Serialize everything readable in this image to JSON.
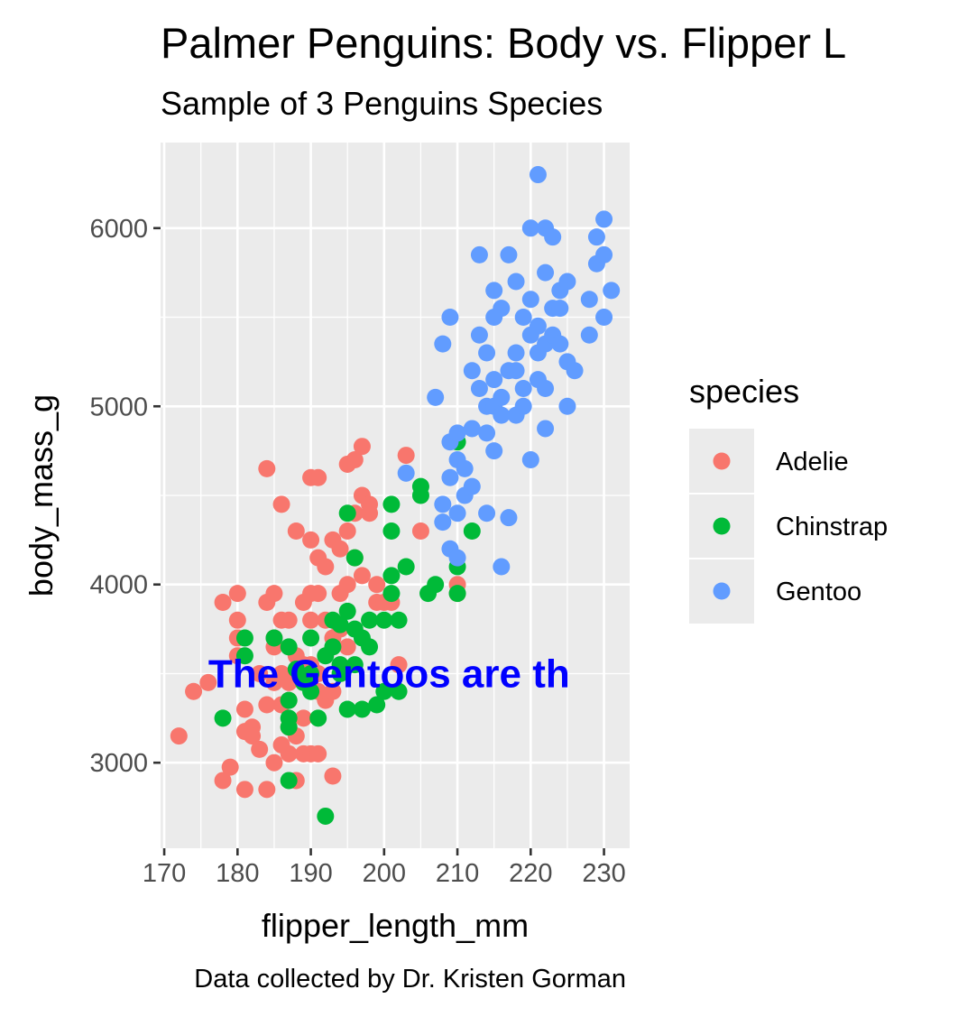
{
  "chart_data": {
    "type": "scatter",
    "title": "Palmer Penguins: Body vs. Flipper L",
    "subtitle": "Sample of 3 Penguins Species",
    "xlabel": "flipper_length_mm",
    "ylabel": "body_mass_g",
    "caption": "Data collected by Dr. Kristen Gorman",
    "xlim": [
      169.5,
      233.5
    ],
    "ylim": [
      2520,
      6480
    ],
    "x_ticks": [
      170,
      180,
      190,
      200,
      210,
      220,
      230
    ],
    "y_ticks": [
      3000,
      4000,
      5000,
      6000
    ],
    "grid": true,
    "legend_title": "species",
    "legend_position": "right",
    "annotation": {
      "text": "The Gentoos are th",
      "x": 176,
      "y": 3500,
      "color": "#0000ff"
    },
    "series": [
      {
        "name": "Adelie",
        "color": "#F8766D",
        "points": [
          [
            172,
            3150
          ],
          [
            174,
            3400
          ],
          [
            176,
            3450
          ],
          [
            178,
            3900
          ],
          [
            178,
            2900
          ],
          [
            179,
            2975
          ],
          [
            180,
            3950
          ],
          [
            180,
            3800
          ],
          [
            180,
            3700
          ],
          [
            180,
            3600
          ],
          [
            181,
            3300
          ],
          [
            181,
            3175
          ],
          [
            181,
            2850
          ],
          [
            182,
            3200
          ],
          [
            182,
            3150
          ],
          [
            183,
            3075
          ],
          [
            184,
            3900
          ],
          [
            184,
            4650
          ],
          [
            184,
            3325
          ],
          [
            184,
            2850
          ],
          [
            185,
            3950
          ],
          [
            185,
            3650
          ],
          [
            185,
            3450
          ],
          [
            185,
            3000
          ],
          [
            186,
            4450
          ],
          [
            186,
            3800
          ],
          [
            186,
            3500
          ],
          [
            186,
            3100
          ],
          [
            187,
            3800
          ],
          [
            187,
            3450
          ],
          [
            187,
            3350
          ],
          [
            187,
            3200
          ],
          [
            187,
            3050
          ],
          [
            188,
            4300
          ],
          [
            188,
            3600
          ],
          [
            188,
            2900
          ],
          [
            189,
            3900
          ],
          [
            189,
            3500
          ],
          [
            189,
            3250
          ],
          [
            189,
            3050
          ],
          [
            190,
            4600
          ],
          [
            190,
            4250
          ],
          [
            190,
            3950
          ],
          [
            190,
            3800
          ],
          [
            190,
            3550
          ],
          [
            190,
            3050
          ],
          [
            191,
            4600
          ],
          [
            191,
            4150
          ],
          [
            191,
            3950
          ],
          [
            191,
            3500
          ],
          [
            191,
            3050
          ],
          [
            192,
            4100
          ],
          [
            192,
            3800
          ],
          [
            192,
            3350
          ],
          [
            193,
            4250
          ],
          [
            193,
            3700
          ],
          [
            193,
            3400
          ],
          [
            193,
            2925
          ],
          [
            194,
            4200
          ],
          [
            194,
            3950
          ],
          [
            194,
            3750
          ],
          [
            195,
            4300
          ],
          [
            195,
            4000
          ],
          [
            195,
            3650
          ],
          [
            195,
            4675
          ],
          [
            196,
            4700
          ],
          [
            196,
            4400
          ],
          [
            196,
            4150
          ],
          [
            197,
            4500
          ],
          [
            197,
            4050
          ],
          [
            197,
            4775
          ],
          [
            198,
            4400
          ],
          [
            198,
            4450
          ],
          [
            199,
            4000
          ],
          [
            199,
            3900
          ],
          [
            200,
            3900
          ],
          [
            201,
            3900
          ],
          [
            202,
            3550
          ],
          [
            203,
            4725
          ],
          [
            205,
            4300
          ],
          [
            210,
            4000
          ],
          [
            210,
            3950
          ],
          [
            185,
            3700
          ],
          [
            183,
            3500
          ],
          [
            189,
            3550
          ],
          [
            186,
            3325
          ],
          [
            188,
            3150
          ],
          [
            191,
            3400
          ]
        ]
      },
      {
        "name": "Chinstrap",
        "color": "#00BA38",
        "points": [
          [
            178,
            3250
          ],
          [
            181,
            3700
          ],
          [
            181,
            3600
          ],
          [
            185,
            3700
          ],
          [
            187,
            3650
          ],
          [
            187,
            3350
          ],
          [
            187,
            3250
          ],
          [
            187,
            3200
          ],
          [
            187,
            2900
          ],
          [
            188,
            3525
          ],
          [
            189,
            3450
          ],
          [
            190,
            3700
          ],
          [
            190,
            3400
          ],
          [
            191,
            3250
          ],
          [
            192,
            2700
          ],
          [
            193,
            3800
          ],
          [
            193,
            3650
          ],
          [
            194,
            3775
          ],
          [
            195,
            4400
          ],
          [
            195,
            3850
          ],
          [
            195,
            3300
          ],
          [
            196,
            4150
          ],
          [
            196,
            3550
          ],
          [
            197,
            3700
          ],
          [
            197,
            3300
          ],
          [
            198,
            3800
          ],
          [
            199,
            3325
          ],
          [
            200,
            3400
          ],
          [
            201,
            4300
          ],
          [
            201,
            4450
          ],
          [
            201,
            4050
          ],
          [
            201,
            3950
          ],
          [
            202,
            3400
          ],
          [
            203,
            4100
          ],
          [
            205,
            4550
          ],
          [
            205,
            4500
          ],
          [
            206,
            3950
          ],
          [
            207,
            4000
          ],
          [
            210,
            4800
          ],
          [
            210,
            4100
          ],
          [
            210,
            3950
          ],
          [
            212,
            4300
          ],
          [
            192,
            3600
          ],
          [
            194,
            3550
          ],
          [
            196,
            3750
          ],
          [
            198,
            3650
          ],
          [
            200,
            3800
          ],
          [
            202,
            3800
          ],
          [
            194,
            3500
          ],
          [
            190,
            3500
          ]
        ]
      },
      {
        "name": "Gentoo",
        "color": "#619CFF",
        "points": [
          [
            203,
            4625
          ],
          [
            207,
            5050
          ],
          [
            208,
            5350
          ],
          [
            208,
            4450
          ],
          [
            208,
            4350
          ],
          [
            209,
            4800
          ],
          [
            209,
            5500
          ],
          [
            209,
            4200
          ],
          [
            209,
            4600
          ],
          [
            210,
            4850
          ],
          [
            210,
            4700
          ],
          [
            210,
            4400
          ],
          [
            210,
            4150
          ],
          [
            211,
            4500
          ],
          [
            211,
            4650
          ],
          [
            212,
            4550
          ],
          [
            212,
            4875
          ],
          [
            213,
            5850
          ],
          [
            213,
            5400
          ],
          [
            213,
            5100
          ],
          [
            214,
            5000
          ],
          [
            214,
            4400
          ],
          [
            214,
            4850
          ],
          [
            215,
            5650
          ],
          [
            215,
            5500
          ],
          [
            215,
            5000
          ],
          [
            215,
            4750
          ],
          [
            215,
            5150
          ],
          [
            216,
            5550
          ],
          [
            216,
            4100
          ],
          [
            216,
            4950
          ],
          [
            217,
            5850
          ],
          [
            217,
            5200
          ],
          [
            217,
            4375
          ],
          [
            218,
            5700
          ],
          [
            218,
            5300
          ],
          [
            218,
            4950
          ],
          [
            219,
            5500
          ],
          [
            219,
            5100
          ],
          [
            220,
            6000
          ],
          [
            220,
            5400
          ],
          [
            220,
            5600
          ],
          [
            220,
            4700
          ],
          [
            221,
            6300
          ],
          [
            221,
            5450
          ],
          [
            221,
            5150
          ],
          [
            222,
            6000
          ],
          [
            222,
            5750
          ],
          [
            222,
            5350
          ],
          [
            222,
            4875
          ],
          [
            223,
            5950
          ],
          [
            223,
            5550
          ],
          [
            223,
            5400
          ],
          [
            224,
            5650
          ],
          [
            224,
            5350
          ],
          [
            225,
            5700
          ],
          [
            225,
            5250
          ],
          [
            225,
            5000
          ],
          [
            226,
            5200
          ],
          [
            228,
            5600
          ],
          [
            228,
            5400
          ],
          [
            229,
            5950
          ],
          [
            229,
            5800
          ],
          [
            230,
            6050
          ],
          [
            230,
            5850
          ],
          [
            230,
            5500
          ],
          [
            231,
            5650
          ],
          [
            212,
            5200
          ],
          [
            214,
            5300
          ],
          [
            216,
            5050
          ],
          [
            218,
            5200
          ],
          [
            219,
            5000
          ],
          [
            221,
            5300
          ],
          [
            222,
            5100
          ],
          [
            224,
            5550
          ]
        ]
      }
    ]
  }
}
